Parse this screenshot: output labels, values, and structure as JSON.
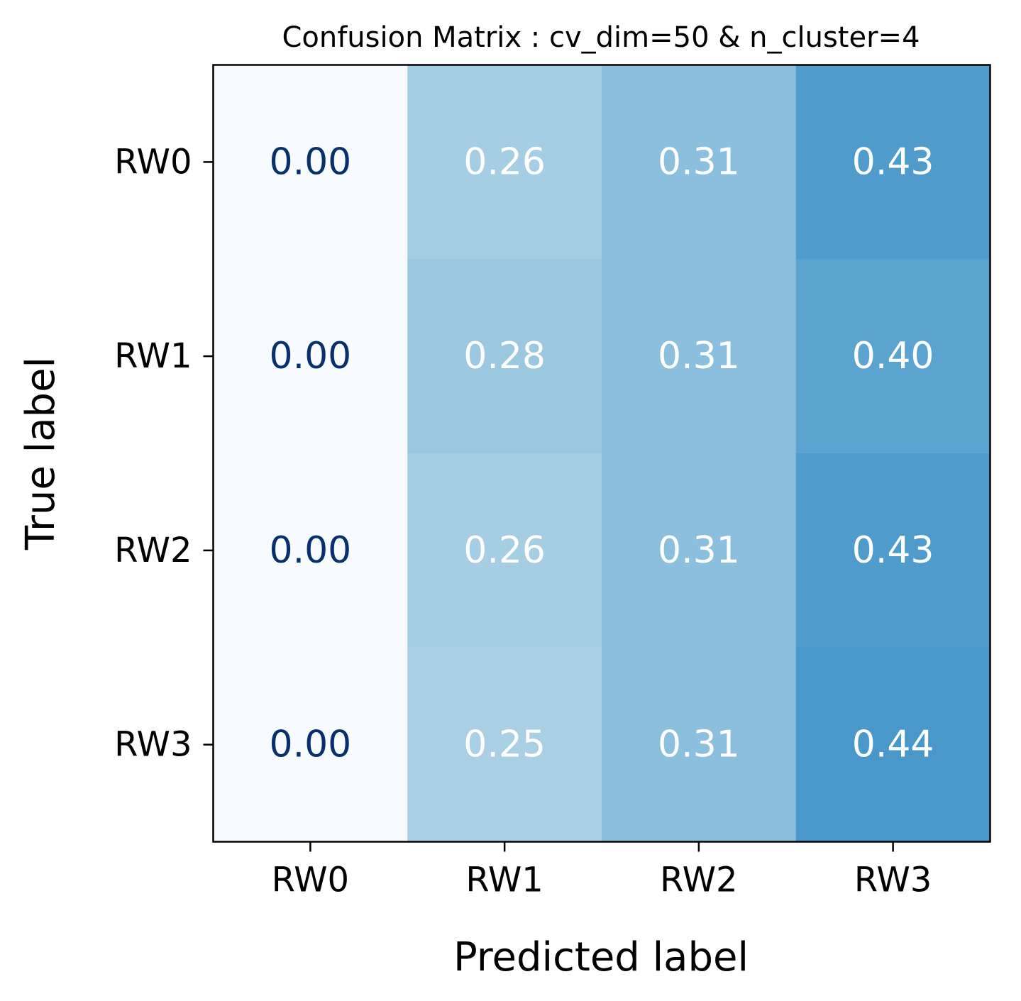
{
  "chart_data": {
    "type": "heatmap",
    "title": "Confusion Matrix : cv_dim=50 & n_cluster=4",
    "xlabel": "Predicted label",
    "ylabel": "True label",
    "x_categories": [
      "RW0",
      "RW1",
      "RW2",
      "RW3"
    ],
    "y_categories": [
      "RW0",
      "RW1",
      "RW2",
      "RW3"
    ],
    "values": [
      [
        0.0,
        0.26,
        0.31,
        0.43
      ],
      [
        0.0,
        0.28,
        0.31,
        0.4
      ],
      [
        0.0,
        0.26,
        0.31,
        0.43
      ],
      [
        0.0,
        0.25,
        0.31,
        0.44
      ]
    ],
    "cell_labels": [
      [
        "0.00",
        "0.26",
        "0.31",
        "0.43"
      ],
      [
        "0.00",
        "0.28",
        "0.31",
        "0.40"
      ],
      [
        "0.00",
        "0.26",
        "0.31",
        "0.43"
      ],
      [
        "0.00",
        "0.25",
        "0.31",
        "0.44"
      ]
    ],
    "colormap": "Blues",
    "color_range": [
      0,
      1
    ],
    "colorbar": false,
    "grid": false,
    "text_colors": {
      "dark": "#08306b",
      "light": "#ffffff"
    }
  }
}
